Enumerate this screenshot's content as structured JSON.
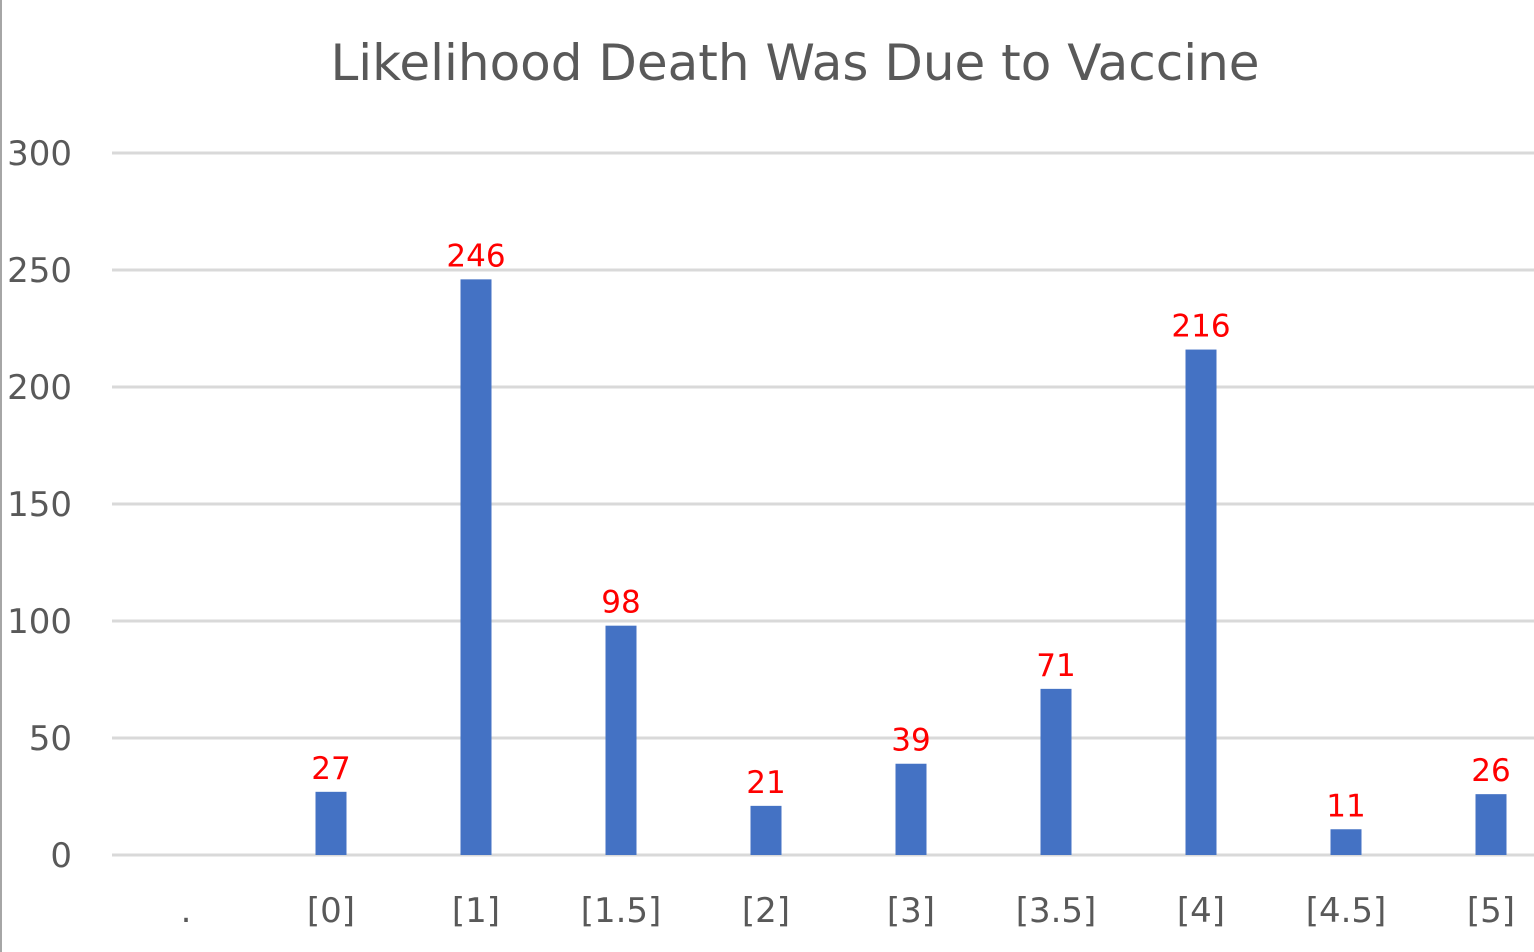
{
  "chart_data": {
    "type": "bar",
    "title": "Likelihood Death Was Due to Vaccine",
    "xlabel": "",
    "ylabel": "",
    "ylim": [
      0,
      300
    ],
    "yticks": [
      0,
      50,
      100,
      150,
      200,
      250,
      300
    ],
    "categories": [
      ".",
      "[0]",
      "[1]",
      "[1.5]",
      "[2]",
      "[3]",
      "[3.5]",
      "[4]",
      "[4.5]",
      "[5]"
    ],
    "values": [
      null,
      27,
      246,
      98,
      21,
      39,
      71,
      216,
      11,
      26
    ],
    "data_labels": [
      "",
      "27",
      "246",
      "98",
      "21",
      "39",
      "71",
      "216",
      "11",
      "26"
    ],
    "grid": true,
    "legend": "none",
    "colors": {
      "bar": "#4472c4",
      "data_label": "#ff0000",
      "grid": "#d9d9d9",
      "text": "#595959"
    }
  }
}
